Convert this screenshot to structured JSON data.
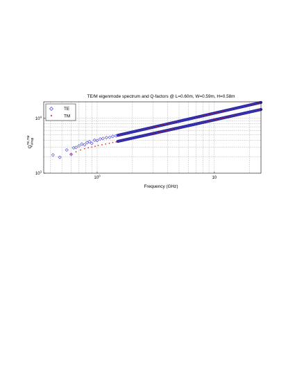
{
  "chart_data": {
    "type": "scatter",
    "title": "TE/M eigenmode spectrum and Q-factors @ L=0.60m, W=0.59m, H=0.58m",
    "xlabel": "Frequency (GHz)",
    "ylabel": {
      "base": "Q",
      "superscript": "TE,TM",
      "subscript": "Wrap"
    },
    "xscale": "log",
    "yscale": "log",
    "xlim": [
      0.35,
      25
    ],
    "ylim": [
      1000,
      20000
    ],
    "x_ticks": [
      {
        "value": 1,
        "label": "10^0"
      },
      {
        "value": 10,
        "label": "10"
      }
    ],
    "y_ticks": [
      {
        "value": 1000,
        "label": "10^3"
      },
      {
        "value": 10000,
        "label": "10^4"
      }
    ],
    "grid": true,
    "legend": {
      "placement": "top-left",
      "entries": [
        "TE",
        "TM"
      ]
    },
    "series": [
      {
        "name": "TE",
        "marker": "diamond-open",
        "color": "#3b3bd6",
        "points": [
          [
            0.42,
            2150
          ],
          [
            0.48,
            1950
          ],
          [
            0.55,
            2650
          ],
          [
            0.6,
            2200
          ],
          [
            0.63,
            2900
          ],
          [
            0.66,
            2950
          ],
          [
            0.7,
            3150
          ],
          [
            0.74,
            3400
          ],
          [
            0.78,
            3300
          ],
          [
            0.82,
            3600
          ],
          [
            0.86,
            3750
          ],
          [
            0.9,
            3500
          ],
          [
            0.95,
            4000
          ],
          [
            1.0,
            3950
          ],
          [
            1.06,
            4200
          ],
          [
            1.12,
            4300
          ],
          [
            1.2,
            4450
          ],
          [
            1.28,
            4500
          ],
          [
            1.36,
            4700
          ],
          [
            1.45,
            4800
          ]
        ],
        "dense_band": {
          "x_start": 1.5,
          "x_end": 25,
          "q_start": 4900,
          "q_end": 19500
        }
      },
      {
        "name": "TM",
        "marker": "dot",
        "color": "#e0303a",
        "points": [
          [
            0.6,
            2220
          ],
          [
            0.66,
            2450
          ],
          [
            0.72,
            2650
          ],
          [
            0.78,
            2800
          ],
          [
            0.84,
            2900
          ],
          [
            0.9,
            3000
          ],
          [
            0.96,
            3100
          ],
          [
            1.02,
            3200
          ],
          [
            1.1,
            3300
          ],
          [
            1.18,
            3400
          ],
          [
            1.27,
            3500
          ],
          [
            1.36,
            3620
          ],
          [
            1.45,
            3720
          ]
        ],
        "dense_band": {
          "x_start": 1.5,
          "x_end": 25,
          "q_start": 3800,
          "q_end": 14500
        }
      }
    ],
    "style": {
      "frame": "#000000",
      "grid": "#8a8a8a",
      "band_fill": "#2a2aa8"
    }
  }
}
